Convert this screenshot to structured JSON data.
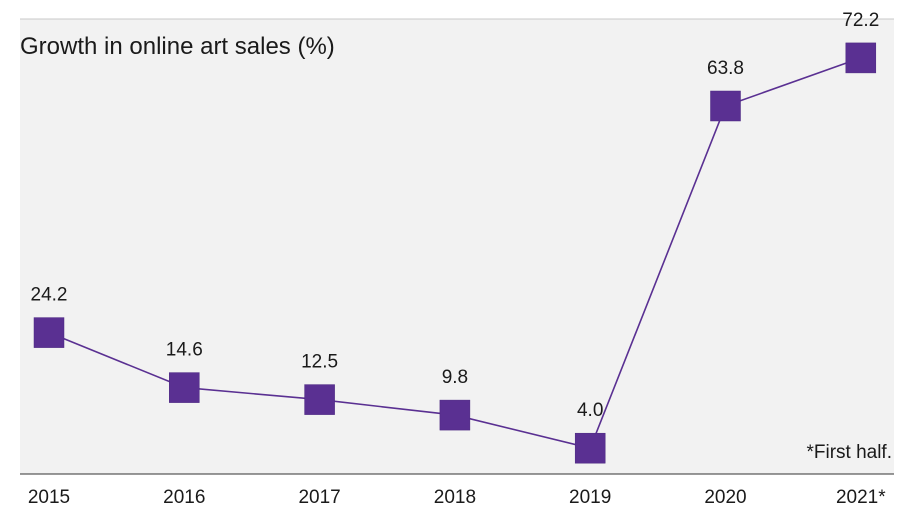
{
  "chart_data": {
    "type": "line",
    "title": "Growth in online art sales (%)",
    "categories": [
      "2015",
      "2016",
      "2017",
      "2018",
      "2019",
      "2020",
      "2021*"
    ],
    "values": [
      24.2,
      14.6,
      12.5,
      9.8,
      4.0,
      63.8,
      72.2
    ],
    "value_labels": [
      "24.2",
      "14.6",
      "12.5",
      "9.8",
      "4.0",
      "63.8",
      "72.2"
    ],
    "xlabel": "",
    "ylabel": "",
    "ylim": [
      -0.5,
      79
    ],
    "grid": false,
    "footnote": "*First half.",
    "colors": {
      "series": "#5a3092",
      "background": "#f2f2f2"
    }
  }
}
